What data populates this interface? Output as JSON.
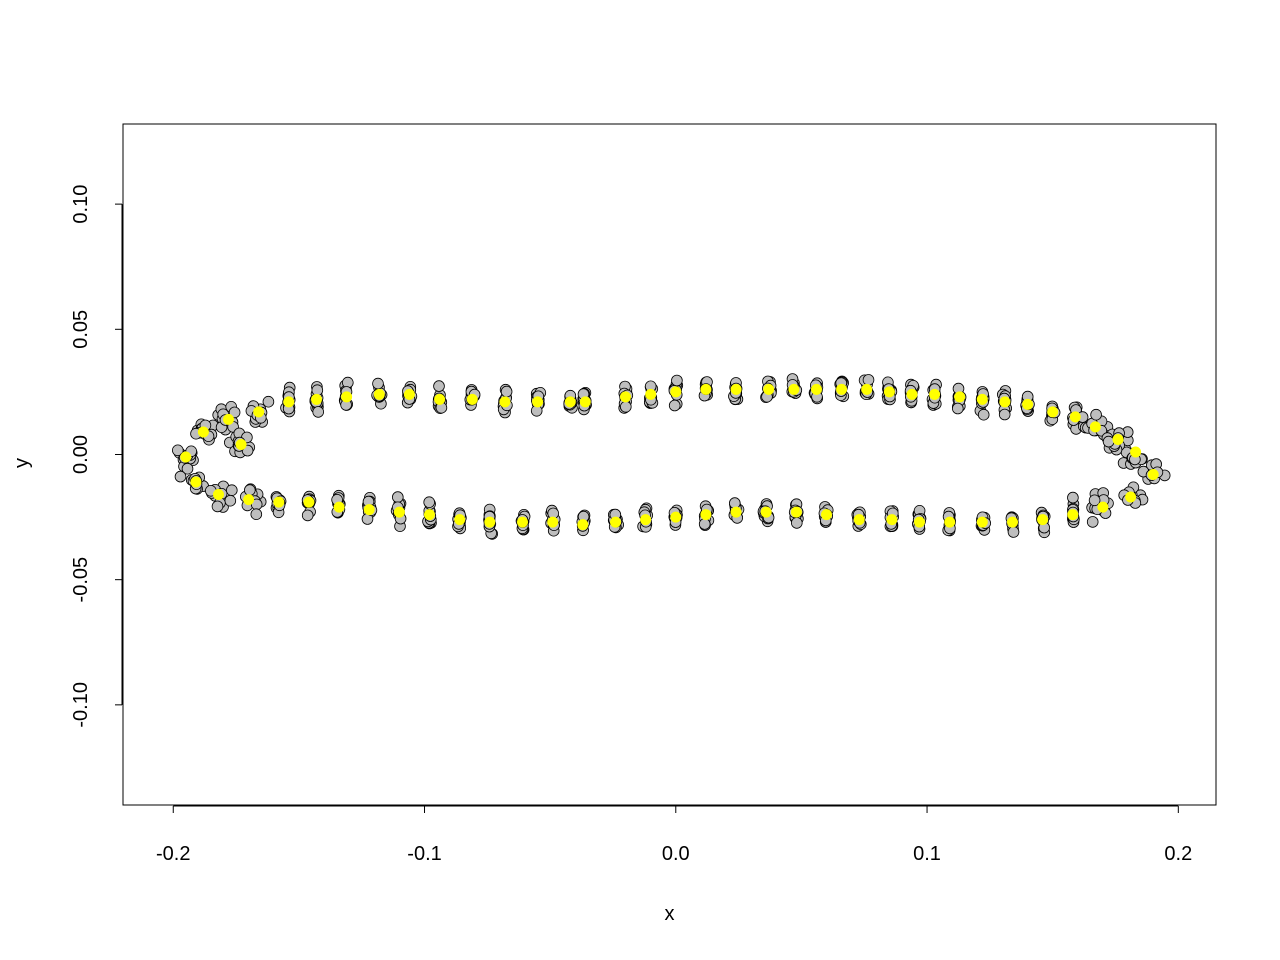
{
  "chart_data": {
    "type": "scatter",
    "xlabel": "x",
    "ylabel": "y",
    "xlim": [
      -0.22,
      0.215
    ],
    "ylim": [
      -0.14,
      0.132
    ],
    "x_ticks": [
      -0.2,
      -0.1,
      0.0,
      0.1,
      0.2
    ],
    "x_tick_labels": [
      "-0.2",
      "-0.1",
      "0.0",
      "0.1",
      "0.2"
    ],
    "y_ticks": [
      -0.1,
      -0.05,
      0.0,
      0.05,
      0.1
    ],
    "y_tick_labels": [
      "-0.10",
      "-0.05",
      "0.00",
      "0.05",
      "0.10"
    ],
    "grid": false,
    "colors": {
      "sample_points": "#bebebe",
      "mean_points": "#ffff00",
      "outline": "#000000"
    },
    "series": [
      {
        "role": "mean_points",
        "color": "#ffff00",
        "points": [
          [
            -0.195,
            -0.001
          ],
          [
            -0.191,
            -0.011
          ],
          [
            -0.188,
            0.009
          ],
          [
            -0.182,
            -0.016
          ],
          [
            -0.178,
            0.014
          ],
          [
            -0.173,
            0.004
          ],
          [
            -0.17,
            -0.018
          ],
          [
            -0.166,
            0.017
          ],
          [
            -0.158,
            -0.019
          ],
          [
            -0.154,
            0.021
          ],
          [
            -0.146,
            -0.019
          ],
          [
            -0.143,
            0.022
          ],
          [
            -0.134,
            -0.021
          ],
          [
            -0.131,
            0.023
          ],
          [
            -0.122,
            -0.022
          ],
          [
            -0.118,
            0.024
          ],
          [
            -0.11,
            -0.023
          ],
          [
            -0.106,
            0.024
          ],
          [
            -0.098,
            -0.024
          ],
          [
            -0.094,
            0.022
          ],
          [
            -0.086,
            -0.026
          ],
          [
            -0.081,
            0.022
          ],
          [
            -0.074,
            -0.027
          ],
          [
            -0.068,
            0.021
          ],
          [
            -0.061,
            -0.027
          ],
          [
            -0.055,
            0.021
          ],
          [
            -0.049,
            -0.027
          ],
          [
            -0.042,
            0.021
          ],
          [
            -0.037,
            -0.028
          ],
          [
            -0.036,
            0.021
          ],
          [
            -0.024,
            -0.027
          ],
          [
            -0.02,
            0.023
          ],
          [
            -0.012,
            -0.026
          ],
          [
            -0.01,
            0.024
          ],
          [
            0.0,
            -0.025
          ],
          [
            0.0,
            0.025
          ],
          [
            0.012,
            -0.024
          ],
          [
            0.012,
            0.026
          ],
          [
            0.024,
            -0.023
          ],
          [
            0.024,
            0.026
          ],
          [
            0.036,
            -0.023
          ],
          [
            0.037,
            0.026
          ],
          [
            0.048,
            -0.023
          ],
          [
            0.047,
            0.026
          ],
          [
            0.06,
            -0.024
          ],
          [
            0.056,
            0.026
          ],
          [
            0.073,
            -0.026
          ],
          [
            0.066,
            0.026
          ],
          [
            0.086,
            -0.026
          ],
          [
            0.076,
            0.026
          ],
          [
            0.097,
            -0.027
          ],
          [
            0.085,
            0.025
          ],
          [
            0.109,
            -0.027
          ],
          [
            0.094,
            0.024
          ],
          [
            0.122,
            -0.027
          ],
          [
            0.103,
            0.024
          ],
          [
            0.134,
            -0.027
          ],
          [
            0.113,
            0.023
          ],
          [
            0.146,
            -0.026
          ],
          [
            0.122,
            0.022
          ],
          [
            0.158,
            -0.024
          ],
          [
            0.131,
            0.021
          ],
          [
            0.17,
            -0.021
          ],
          [
            0.14,
            0.02
          ],
          [
            0.181,
            -0.017
          ],
          [
            0.15,
            0.017
          ],
          [
            0.19,
            -0.008
          ],
          [
            0.159,
            0.015
          ],
          [
            0.183,
            0.001
          ],
          [
            0.167,
            0.011
          ],
          [
            0.176,
            0.006
          ]
        ]
      },
      {
        "role": "sample_points",
        "color": "#bebebe",
        "spread": {
          "vertical": 0.008,
          "horizontal": 0.0015,
          "end_cluster": 0.008
        },
        "points_per_mean": 12
      }
    ]
  }
}
